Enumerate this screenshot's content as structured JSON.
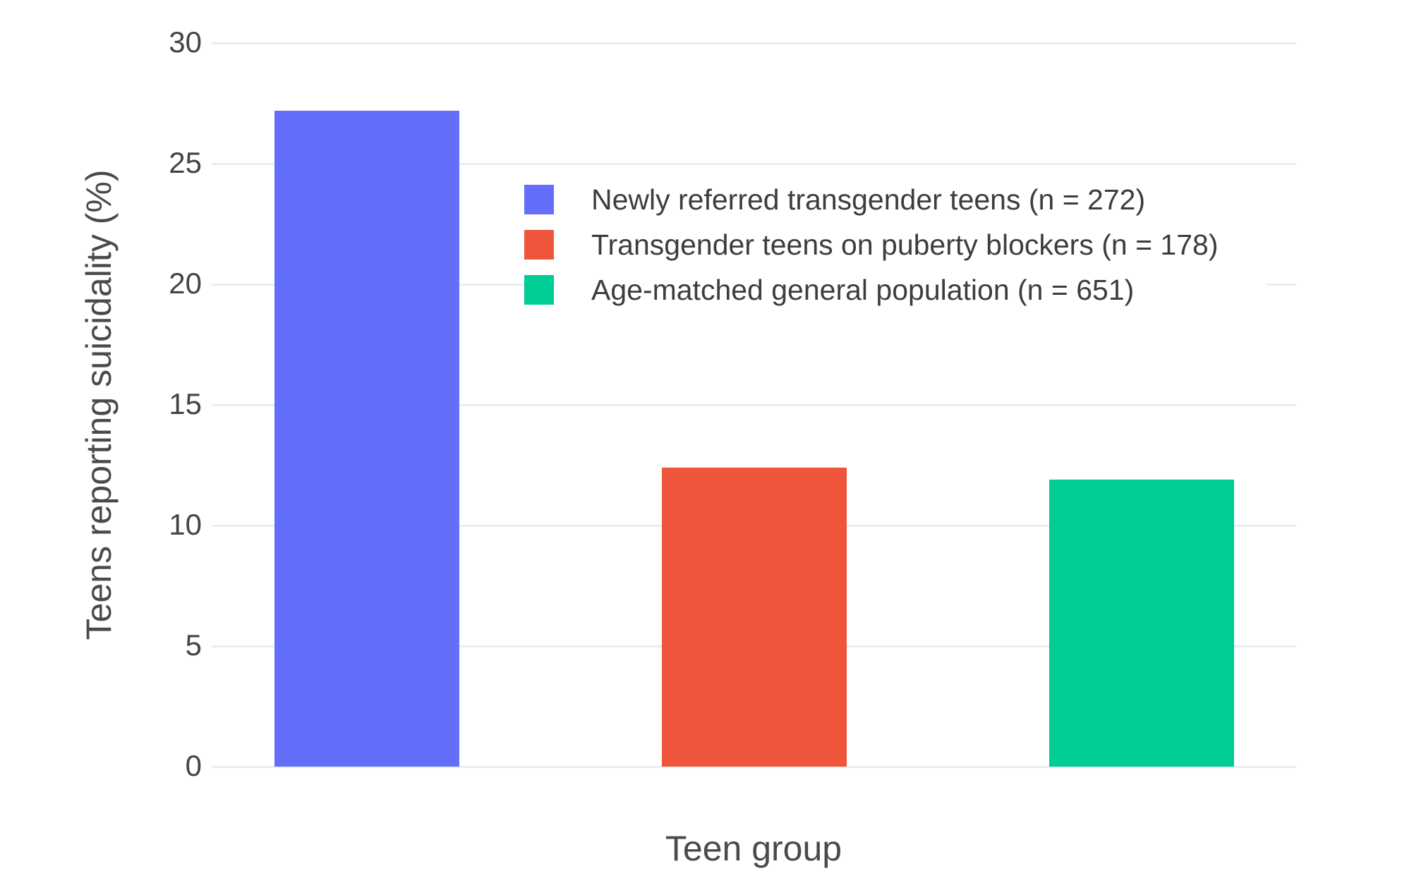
{
  "chart": {
    "background_color": "#ffffff",
    "grid_color": "#e9eef6",
    "tick_text_color": "#444444",
    "title_text_color": "#4a4a4a"
  },
  "chart_data": {
    "type": "bar",
    "title": "",
    "xlabel": "Teen group",
    "ylabel": "Teens reporting suicidality (%)",
    "ylim": [
      0,
      30
    ],
    "yticks": [
      0,
      5,
      10,
      15,
      20,
      25,
      30
    ],
    "grid": true,
    "legend_position": "inside plot, upper area, left-aligned near plot center-left",
    "categories": [
      "Newly referred transgender teens (n = 272)",
      "Transgender teens on puberty blockers (n = 178)",
      "Age-matched general population (n = 651)"
    ],
    "series": [
      {
        "name": "Newly referred transgender teens (n = 272)",
        "value": 27.2,
        "color": "#636efa"
      },
      {
        "name": "Transgender teens on puberty blockers (n = 178)",
        "value": 12.4,
        "color": "#ef553b"
      },
      {
        "name": "Age-matched general population (n = 651)",
        "value": 11.9,
        "color": "#00cc96"
      }
    ]
  }
}
